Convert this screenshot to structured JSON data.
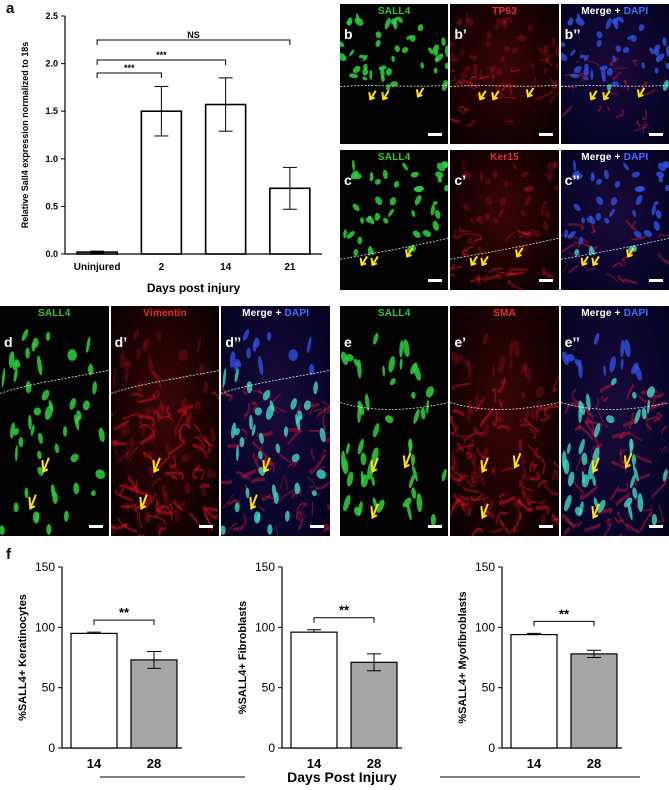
{
  "panel_a": {
    "label": "a",
    "chart_data": {
      "type": "bar",
      "categories": [
        "Uninjured",
        "2",
        "14",
        "21"
      ],
      "values": [
        0.02,
        1.5,
        1.57,
        0.69
      ],
      "errors": [
        0.01,
        0.26,
        0.28,
        0.22
      ],
      "ylabel": "Relative Sall4 expression normalized to 18s",
      "xlabel": "Days post injury",
      "ylim": [
        0,
        2.5
      ],
      "yticks": [
        "0.0",
        "0.5",
        "1.0",
        "1.5",
        "2.0",
        "2.5"
      ],
      "significance": [
        {
          "from": "Uninjured",
          "to": "2",
          "label": "***"
        },
        {
          "from": "Uninjured",
          "to": "14",
          "label": "***"
        },
        {
          "from": "Uninjured",
          "to": "21",
          "label": "NS"
        }
      ]
    }
  },
  "micro_bc": {
    "rows": [
      {
        "panels": [
          {
            "sub": "b",
            "channel": "SALL4",
            "tone": "green"
          },
          {
            "sub": "b’",
            "channel": "TP63",
            "tone": "red"
          },
          {
            "sub": "b’’",
            "channel_prefix": "Merge + ",
            "channel": "DAPI",
            "tone": "merge"
          }
        ]
      },
      {
        "panels": [
          {
            "sub": "c",
            "channel": "SALL4",
            "tone": "green"
          },
          {
            "sub": "c’",
            "channel": "Ker15",
            "tone": "red"
          },
          {
            "sub": "c’’",
            "channel_prefix": "Merge + ",
            "channel": "DAPI",
            "tone": "merge"
          }
        ]
      }
    ]
  },
  "micro_de": {
    "left": [
      {
        "sub": "d",
        "channel": "SALL4",
        "tone": "green"
      },
      {
        "sub": "d’",
        "channel": "Vimentin",
        "tone": "red"
      },
      {
        "sub": "d’’",
        "channel_prefix": "Merge + ",
        "channel": "DAPI",
        "tone": "merge"
      }
    ],
    "right": [
      {
        "sub": "e",
        "channel": "SALL4",
        "tone": "green"
      },
      {
        "sub": "e’",
        "channel": "SMA",
        "tone": "red"
      },
      {
        "sub": "e’’",
        "channel_prefix": "Merge + ",
        "channel": "DAPI",
        "tone": "merge"
      }
    ]
  },
  "panel_f": {
    "label": "f",
    "xlabel": "Days Post Injury",
    "chart_data": [
      {
        "type": "bar",
        "categories": [
          "14",
          "28"
        ],
        "values": [
          95,
          73
        ],
        "errors": [
          1,
          7
        ],
        "ylabel": "%SALL4+ Keratinocytes",
        "ylim": [
          0,
          150
        ],
        "yticks": [
          "0",
          "50",
          "100",
          "150"
        ],
        "significance": "**",
        "colors": [
          "#ffffff",
          "#a6a6a6"
        ]
      },
      {
        "type": "bar",
        "categories": [
          "14",
          "28"
        ],
        "values": [
          96,
          71
        ],
        "errors": [
          2,
          7
        ],
        "ylabel": "%SALL4+ Fibroblasts",
        "ylim": [
          0,
          150
        ],
        "yticks": [
          "0",
          "50",
          "100",
          "150"
        ],
        "significance": "**",
        "colors": [
          "#ffffff",
          "#a6a6a6"
        ]
      },
      {
        "type": "bar",
        "categories": [
          "14",
          "28"
        ],
        "values": [
          94,
          78
        ],
        "errors": [
          1,
          3
        ],
        "ylabel": "%SALL4+ Myofibroblasts",
        "ylim": [
          0,
          150
        ],
        "yticks": [
          "0",
          "50",
          "100",
          "150"
        ],
        "significance": "**",
        "colors": [
          "#ffffff",
          "#a6a6a6"
        ]
      }
    ]
  }
}
